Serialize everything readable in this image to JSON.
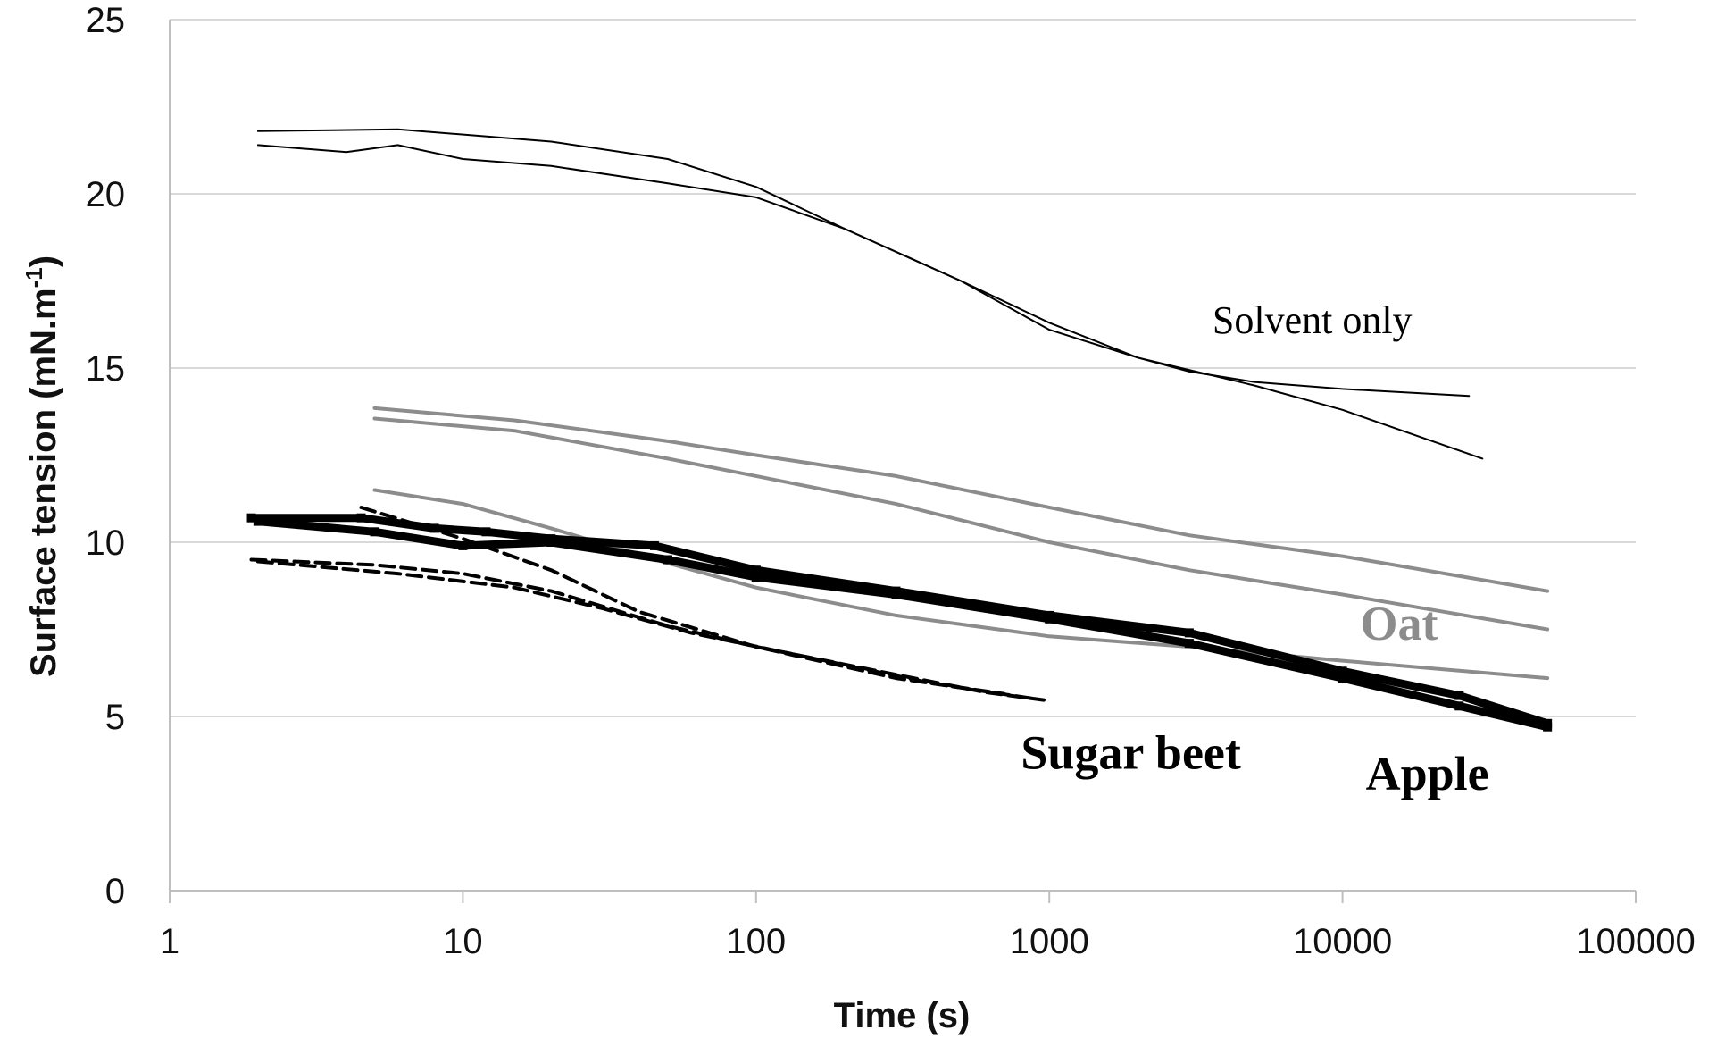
{
  "chart_data": {
    "type": "line",
    "title": "",
    "xlabel": "Time (s)",
    "ylabel": "Surface tension (mN.m-1)",
    "ylabel_parts": {
      "main": "Surface tension (mN.m",
      "sup": "-1",
      "close": ")"
    },
    "x_scale": "log",
    "xlim": [
      1,
      100000
    ],
    "ylim": [
      0,
      25
    ],
    "x_ticks": [
      1,
      10,
      100,
      1000,
      10000,
      100000
    ],
    "x_tick_labels": [
      "1",
      "10",
      "100",
      "1000",
      "10000",
      "100000"
    ],
    "y_ticks": [
      0,
      5,
      10,
      15,
      20,
      25
    ],
    "y_tick_labels": [
      "0",
      "5",
      "10",
      "15",
      "20",
      "25"
    ],
    "grid": {
      "horizontal": true,
      "vertical": false
    },
    "legend": "none",
    "colors": {
      "black": "#000000",
      "gray": "#8c8c8c",
      "grid": "#d9d9d9",
      "axis": "#bfbfbf"
    },
    "series": [
      {
        "group": "Solvent only",
        "style": "thin-solid",
        "color": "#000000",
        "points": [
          [
            2,
            21.8
          ],
          [
            6,
            21.85
          ],
          [
            20,
            21.5
          ],
          [
            50,
            21.0
          ],
          [
            100,
            20.2
          ],
          [
            200,
            19.0
          ],
          [
            500,
            17.5
          ],
          [
            1000,
            16.3
          ],
          [
            2000,
            15.3
          ],
          [
            3000,
            14.9
          ],
          [
            5000,
            14.6
          ],
          [
            10000,
            14.4
          ],
          [
            27000,
            14.2
          ]
        ]
      },
      {
        "group": "Solvent only",
        "style": "thin-solid",
        "color": "#000000",
        "points": [
          [
            2,
            21.4
          ],
          [
            4,
            21.2
          ],
          [
            6,
            21.4
          ],
          [
            10,
            21.0
          ],
          [
            20,
            20.8
          ],
          [
            50,
            20.3
          ],
          [
            100,
            19.9
          ],
          [
            200,
            19.0
          ],
          [
            500,
            17.5
          ],
          [
            1000,
            16.1
          ],
          [
            2000,
            15.3
          ],
          [
            5000,
            14.5
          ],
          [
            10000,
            13.8
          ],
          [
            30000,
            12.4
          ]
        ]
      },
      {
        "group": "Oat",
        "style": "thick-solid",
        "color": "#8c8c8c",
        "points": [
          [
            5,
            13.85
          ],
          [
            15,
            13.5
          ],
          [
            50,
            12.9
          ],
          [
            100,
            12.5
          ],
          [
            300,
            11.9
          ],
          [
            1000,
            11.0
          ],
          [
            3000,
            10.2
          ],
          [
            10000,
            9.6
          ],
          [
            50000,
            8.6
          ]
        ]
      },
      {
        "group": "Oat",
        "style": "thick-solid",
        "color": "#8c8c8c",
        "points": [
          [
            5,
            13.55
          ],
          [
            15,
            13.2
          ],
          [
            50,
            12.4
          ],
          [
            100,
            11.9
          ],
          [
            300,
            11.1
          ],
          [
            1000,
            10.0
          ],
          [
            3000,
            9.2
          ],
          [
            10000,
            8.5
          ],
          [
            50000,
            7.5
          ]
        ]
      },
      {
        "group": "Oat",
        "style": "thick-solid",
        "color": "#8c8c8c",
        "points": [
          [
            5,
            11.5
          ],
          [
            10,
            11.1
          ],
          [
            20,
            10.4
          ],
          [
            50,
            9.4
          ],
          [
            100,
            8.7
          ],
          [
            300,
            7.9
          ],
          [
            1000,
            7.3
          ],
          [
            3000,
            7.0
          ],
          [
            10000,
            6.6
          ],
          [
            50000,
            6.1
          ]
        ]
      },
      {
        "group": "Apple",
        "style": "thick-marker",
        "color": "#000000",
        "points": [
          [
            1.9,
            10.7
          ],
          [
            4.5,
            10.7
          ],
          [
            8,
            10.4
          ],
          [
            12,
            10.3
          ],
          [
            20,
            10.1
          ],
          [
            45,
            9.9
          ],
          [
            100,
            9.2
          ],
          [
            300,
            8.6
          ],
          [
            1000,
            7.9
          ],
          [
            3000,
            7.4
          ],
          [
            10000,
            6.3
          ],
          [
            25000,
            5.6
          ],
          [
            50000,
            4.8
          ]
        ]
      },
      {
        "group": "Apple",
        "style": "thick-marker",
        "color": "#000000",
        "points": [
          [
            2,
            10.6
          ],
          [
            5,
            10.3
          ],
          [
            10,
            9.9
          ],
          [
            20,
            10.0
          ],
          [
            50,
            9.5
          ],
          [
            100,
            9.0
          ],
          [
            300,
            8.5
          ],
          [
            1000,
            7.8
          ],
          [
            3000,
            7.1
          ],
          [
            10000,
            6.1
          ],
          [
            25000,
            5.3
          ],
          [
            50000,
            4.7
          ]
        ]
      },
      {
        "group": "Sugar beet",
        "style": "dashed",
        "color": "#000000",
        "points": [
          [
            1.9,
            9.5
          ],
          [
            5,
            9.35
          ],
          [
            10,
            9.1
          ],
          [
            20,
            8.6
          ],
          [
            50,
            7.6
          ],
          [
            100,
            7.0
          ],
          [
            300,
            6.2
          ],
          [
            600,
            5.7
          ],
          [
            1000,
            5.45
          ]
        ]
      },
      {
        "group": "Sugar beet",
        "style": "dashed",
        "color": "#000000",
        "points": [
          [
            4.5,
            11.0
          ],
          [
            10,
            10.1
          ],
          [
            20,
            9.2
          ],
          [
            40,
            8.0
          ],
          [
            100,
            7.0
          ],
          [
            300,
            6.1
          ],
          [
            700,
            5.65
          ]
        ]
      },
      {
        "group": "Sugar beet",
        "style": "dashed",
        "color": "#000000",
        "points": [
          [
            2,
            9.45
          ],
          [
            6,
            9.1
          ],
          [
            15,
            8.7
          ],
          [
            30,
            8.1
          ],
          [
            60,
            7.4
          ],
          [
            150,
            6.7
          ],
          [
            400,
            5.95
          ],
          [
            900,
            5.5
          ]
        ]
      }
    ],
    "annotations": [
      {
        "text": "Solvent only",
        "x": 3600,
        "y": 16.0,
        "color": "#000000",
        "bold": false
      },
      {
        "text": "Oat",
        "x": 11500,
        "y": 7.2,
        "color": "#8c8c8c",
        "bold": true
      },
      {
        "text": "Sugar beet",
        "x": 800,
        "y": 3.5,
        "color": "#000000",
        "bold": true
      },
      {
        "text": "Apple",
        "x": 12000,
        "y": 2.9,
        "color": "#000000",
        "bold": true
      }
    ]
  }
}
